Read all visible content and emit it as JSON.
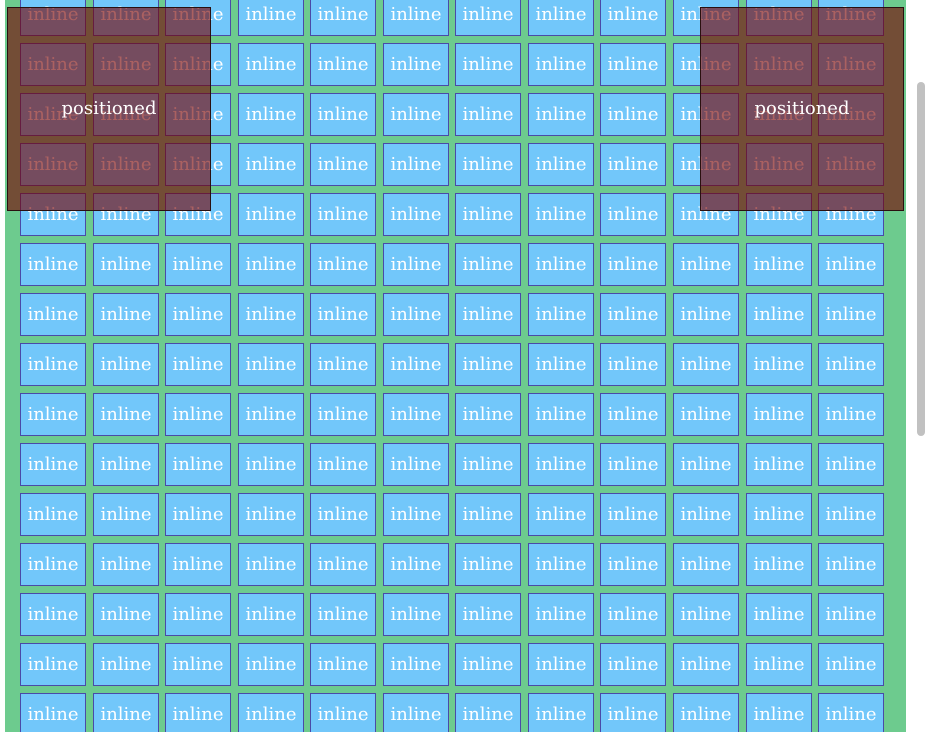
{
  "inline_label": "inline",
  "positioned_left_label": "positioned",
  "positioned_right_label": "positioned",
  "grid": {
    "rows": 15,
    "cols": 12
  }
}
